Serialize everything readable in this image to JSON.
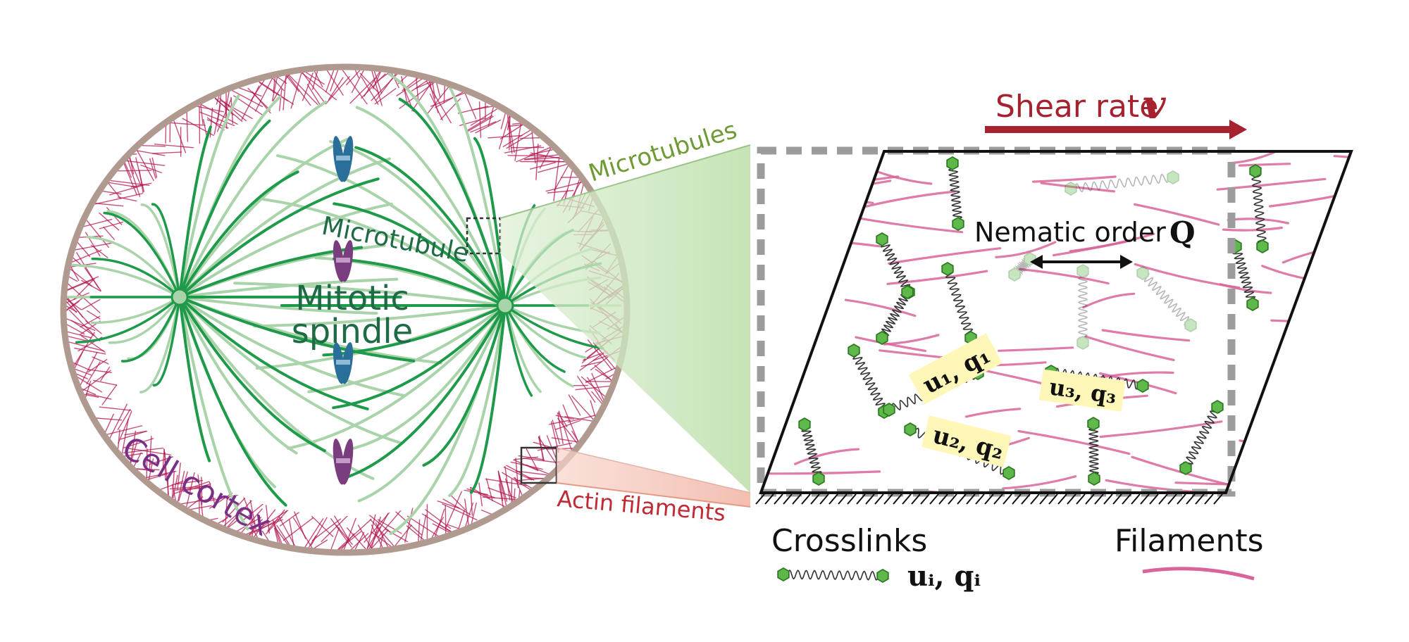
{
  "labels": {
    "microtubules": "Microtubules",
    "microtubule": "Microtubule",
    "mitotic": "Mitotic",
    "spindle": "spindle",
    "cell_cortex": "Cell cortex",
    "actin_filaments": "Actin filaments",
    "shear_rate": "Shear rate",
    "shear_symbol": "v",
    "nematic_order": "Nematic order",
    "nematic_symbol": "Q",
    "crosslinks": "Crosslinks",
    "filaments": "Filaments",
    "legend_symbol": "uᵢ, qᵢ",
    "u1q1": "u₁, q₁",
    "u2q2": "u₂, q₂",
    "u3q3": "u₃, q₃"
  },
  "colors": {
    "microtubule": "#1e9a4a",
    "microtubule_light": "#a9d3a9",
    "actin": "#d9649a",
    "cortex": "#b4154f",
    "cell_border": "#b09a90",
    "shear_arrow": "#a5222e",
    "crosslink": "#5fb94a",
    "chromosome_blue": "#2a6e9a",
    "chromosome_purple": "#7a3d7e",
    "zoom_green": "#cfe6c2",
    "zoom_red": "#f4c3b8"
  }
}
